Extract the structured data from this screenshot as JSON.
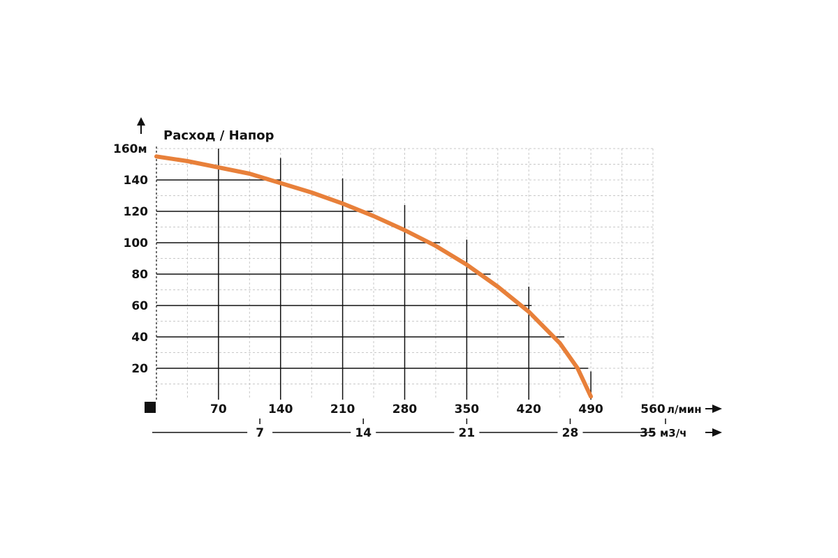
{
  "chart_data": {
    "type": "line",
    "title": "Расход / Напор",
    "y_unit": "м",
    "x_unit": "л/мин",
    "x2_unit": "м3/ч",
    "ylim": [
      0,
      160
    ],
    "xlim": [
      0,
      560
    ],
    "y_ticks": [
      "160",
      "140",
      "120",
      "100",
      "80",
      "60",
      "40",
      "20"
    ],
    "x_ticks": [
      "70",
      "140",
      "210",
      "280",
      "350",
      "420",
      "490",
      "560"
    ],
    "x2_ticks": [
      "7",
      "14",
      "21",
      "28",
      "35"
    ],
    "grid": true,
    "series": [
      {
        "color": "#e8803a",
        "x": [
          0,
          35,
          70,
          105,
          140,
          175,
          210,
          245,
          280,
          315,
          350,
          385,
          420,
          455,
          475,
          490
        ],
        "y": [
          155,
          152,
          148,
          144,
          138,
          132,
          125,
          117,
          108,
          98,
          86,
          72,
          56,
          36,
          20,
          2
        ]
      }
    ]
  },
  "legend_marker_color": "#111111"
}
